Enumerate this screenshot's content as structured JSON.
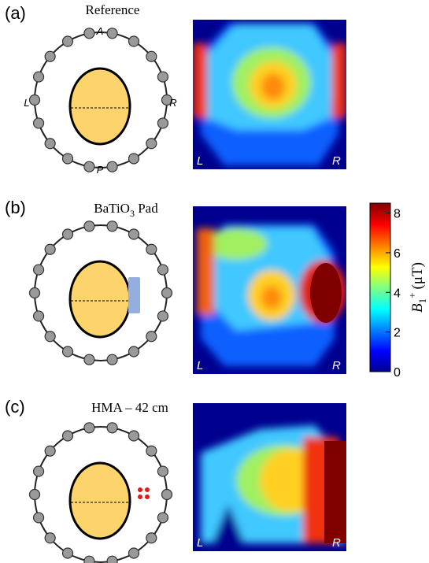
{
  "panels": [
    {
      "label": "(a)",
      "title": [
        "Reference"
      ],
      "orientation": [
        "A",
        "L",
        "R",
        "P"
      ],
      "map_labels": [
        "L",
        "R"
      ]
    },
    {
      "label": "(b)",
      "title": [
        "BaTiO",
        "3",
        " Pad"
      ],
      "map_labels": [
        "L",
        "R"
      ]
    },
    {
      "label": "(c)",
      "title": [
        "HMA – 42 cm"
      ],
      "map_labels": [
        "L",
        "R"
      ]
    }
  ],
  "colorbar": {
    "lim": [
      0,
      8.5
    ],
    "ticks": [
      0,
      2,
      4,
      6,
      8
    ],
    "label": [
      "B",
      "1",
      "+",
      "(μT)"
    ]
  }
}
